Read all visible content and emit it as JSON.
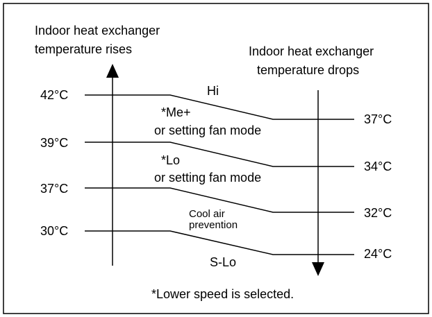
{
  "left_heading": [
    "Indoor heat exchanger",
    "temperature rises"
  ],
  "right_heading": [
    "Indoor heat exchanger",
    "temperature drops"
  ],
  "left_temps": [
    "42°C",
    "39°C",
    "37°C",
    "30°C"
  ],
  "right_temps": [
    "37°C",
    "34°C",
    "32°C",
    "24°C"
  ],
  "zones": [
    [
      "Hi"
    ],
    [
      "*Me+",
      "or setting fan mode"
    ],
    [
      "*Lo",
      "or setting fan mode"
    ],
    [
      "Cool air",
      "prevention"
    ],
    [
      "S-Lo"
    ]
  ],
  "footnote": "*Lower speed is selected."
}
